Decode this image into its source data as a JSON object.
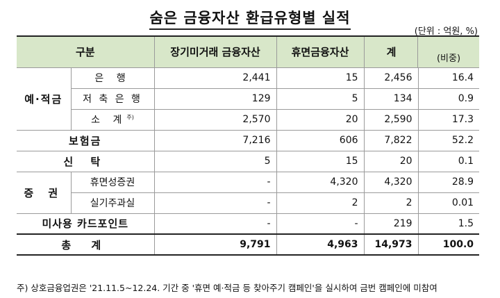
{
  "title": "숨은 금융자산 환급유형별 실적",
  "unit": "(단위 : 억원, %)",
  "headers": {
    "category": "구분",
    "longterm": "장기미거래 금융자산",
    "dormant": "휴면금융자산",
    "total": "계",
    "ratio": "(비중)"
  },
  "rows": {
    "deposit_group": "예·적금",
    "bank": {
      "label": "은 행",
      "longterm": "2,441",
      "dormant": "15",
      "total": "2,456",
      "ratio": "16.4"
    },
    "savings_bank": {
      "label": "저 축 은 행",
      "longterm": "129",
      "dormant": "5",
      "total": "134",
      "ratio": "0.9"
    },
    "subtotal": {
      "label": "소 계",
      "label_sup": "주)",
      "longterm": "2,570",
      "dormant": "20",
      "total": "2,590",
      "ratio": "17.3"
    },
    "insurance": {
      "label": "보험금",
      "longterm": "7,216",
      "dormant": "606",
      "total": "7,822",
      "ratio": "52.2"
    },
    "trust": {
      "label": "신 탁",
      "longterm": "5",
      "dormant": "15",
      "total": "20",
      "ratio": "0.1"
    },
    "securities_group": "증 권",
    "dormant_securities": {
      "label": "휴면성증권",
      "longterm": "-",
      "dormant": "4,320",
      "total": "4,320",
      "ratio": "28.9"
    },
    "unclaimed_stock": {
      "label": "실기주과실",
      "longterm": "-",
      "dormant": "2",
      "total": "2",
      "ratio": "0.01"
    },
    "card_points": {
      "label": "미사용 카드포인트",
      "longterm": "-",
      "dormant": "-",
      "total": "219",
      "ratio": "1.5"
    },
    "grand_total": {
      "label": "총 계",
      "longterm": "9,791",
      "dormant": "4,963",
      "total": "14,973",
      "ratio": "100.0"
    }
  },
  "footnote": "주) 상호금융업권은 '21.11.5~12.24. 기간 중 '휴면 예·적금 등 찾아주기 캠페인'을 실시하여 금번 캠페인에 미참여"
}
